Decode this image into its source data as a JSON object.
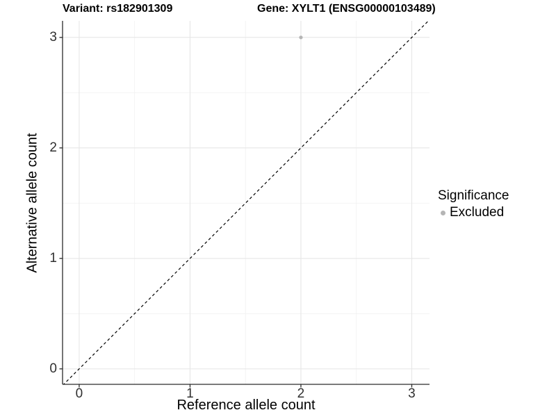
{
  "figure": {
    "background": "#ffffff"
  },
  "chart_data": {
    "type": "scatter",
    "titles": {
      "left": "Variant: rs182901309",
      "right": "Gene: XYLT1 (ENSG00000103489)"
    },
    "xlabel": "Reference allele count",
    "ylabel": "Alternative allele count",
    "xlim": [
      -0.15,
      3.16
    ],
    "ylim": [
      -0.14,
      3.15
    ],
    "x_ticks": [
      0,
      1,
      2,
      3
    ],
    "y_ticks": [
      0,
      1,
      2,
      3
    ],
    "x_minor_ticks": [
      0.5,
      1.5,
      2.5
    ],
    "y_minor_ticks": [
      0.5,
      1.5,
      2.5
    ],
    "grid": "on",
    "series": [
      {
        "name": "Excluded",
        "marker": "circle",
        "color": "#b5b5b5",
        "points": [
          [
            2,
            3
          ]
        ]
      }
    ],
    "reference_line": {
      "slope": 1,
      "intercept": 0,
      "style": "dashed",
      "color": "#000000",
      "meaning": "y = x identity line"
    },
    "legend": {
      "position": "right",
      "title": "Significance",
      "entries": [
        {
          "label": "Excluded",
          "color": "#b5b5b5"
        }
      ]
    }
  },
  "style_colors": {
    "grid_major": "#e6e6e6",
    "grid_minor": "#f2f2f2",
    "axis_line": "#2a2a2a",
    "tick_mark": "#2a2a2a",
    "tick_label": "#303030",
    "title_text": "#000000"
  }
}
